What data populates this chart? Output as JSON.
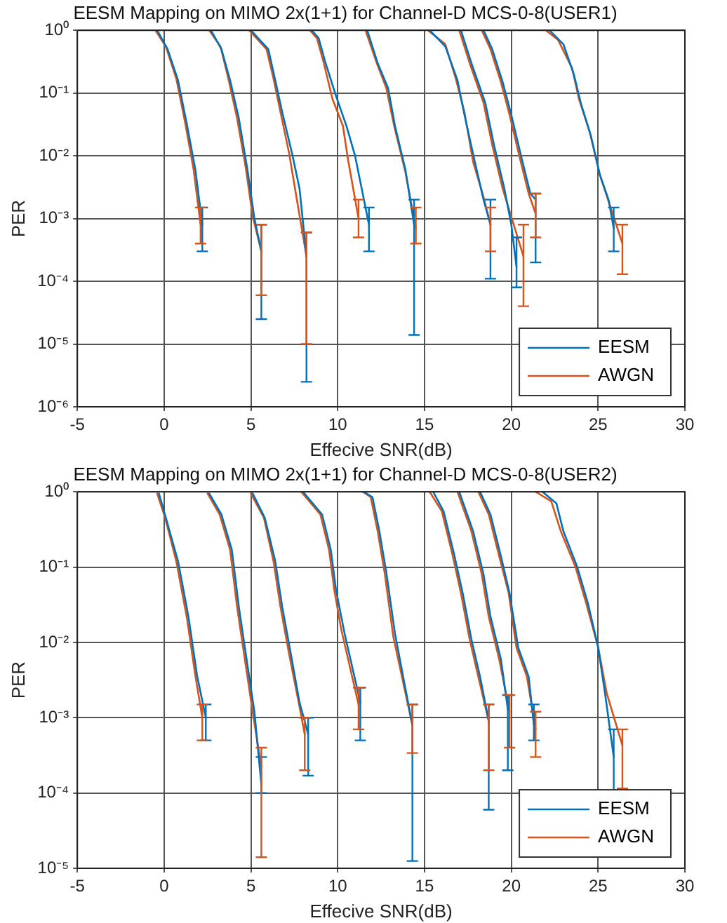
{
  "chart_data": [
    {
      "type": "line",
      "title": "EESM Mapping on MIMO 2x(1+1) for Channel-D MCS-0-8(USER1)",
      "xlabel": "Effecive SNR(dB)",
      "ylabel": "PER",
      "log": "y",
      "grid": true,
      "legend": "bottom right",
      "marker": "none",
      "line_style": "solid",
      "xlim": [
        -5,
        30
      ],
      "xticks": [
        -5,
        0,
        5,
        10,
        15,
        20,
        25,
        30
      ],
      "ylim": [
        1e-06,
        1
      ],
      "yticks": [
        {
          "value": 1e-06,
          "label": "10⁻⁶"
        },
        {
          "value": 1e-05,
          "label": "10⁻⁵"
        },
        {
          "value": 0.0001,
          "label": "10⁻⁴"
        },
        {
          "value": 0.001,
          "label": "10⁻³"
        },
        {
          "value": 0.01,
          "label": "10⁻²"
        },
        {
          "value": 0.1,
          "label": "10⁻¹"
        },
        {
          "value": 1,
          "label": "10⁰"
        }
      ],
      "series": [
        {
          "name": "EESM",
          "color": "#0072bd",
          "x": [
            -0.4,
            0.2,
            0.8,
            1.3,
            1.8,
            2.2,
            null,
            2.7,
            3.3,
            3.8,
            4.3,
            4.8,
            5.2,
            5.6,
            null,
            5.0,
            6.0,
            6.4,
            6.8,
            7.4,
            7.8,
            8.2,
            null,
            8.5,
            8.9,
            9.3,
            9.9,
            10.5,
            11.0,
            11.8,
            null,
            11.7,
            12.3,
            12.9,
            13.3,
            13.9,
            14.4,
            null,
            15.3,
            16.2,
            16.9,
            17.3,
            17.9,
            18.4,
            18.8,
            null,
            17.1,
            17.7,
            18.5,
            19.0,
            19.6,
            20.0,
            20.3,
            null,
            18.4,
            18.9,
            19.5,
            20.0,
            20.6,
            21.1,
            21.4,
            null,
            22.2,
            23.0,
            23.6,
            24.0,
            24.6,
            25.1,
            25.6,
            25.9
          ],
          "values": [
            1,
            0.5,
            0.16,
            0.033,
            0.006,
            0.0008,
            null,
            1,
            0.5,
            0.16,
            0.04,
            0.006,
            0.001,
            0.0003,
            null,
            1,
            0.5,
            0.16,
            0.05,
            0.01,
            0.003,
            0.00025,
            null,
            1,
            0.75,
            0.3,
            0.09,
            0.03,
            0.01,
            0.0008,
            null,
            1,
            0.3,
            0.12,
            0.03,
            0.006,
            0.0008,
            null,
            1,
            0.55,
            0.16,
            0.045,
            0.008,
            0.002,
            0.0008,
            null,
            1,
            0.3,
            0.07,
            0.015,
            0.003,
            0.0008,
            0.00017,
            null,
            1,
            0.5,
            0.15,
            0.045,
            0.009,
            0.0025,
            0.002,
            null,
            1,
            0.6,
            0.2,
            0.07,
            0.02,
            0.005,
            0.002,
            0.0007
          ],
          "errors": [
            null,
            null,
            null,
            null,
            null,
            [
              0.0003,
              0.0015
            ],
            null,
            null,
            null,
            null,
            null,
            null,
            null,
            [
              2.5e-05,
              0.0008
            ],
            null,
            null,
            null,
            null,
            null,
            null,
            null,
            [
              2.5e-06,
              0.0006
            ],
            null,
            null,
            null,
            null,
            null,
            null,
            null,
            [
              0.0003,
              0.0015
            ],
            null,
            null,
            null,
            null,
            null,
            null,
            [
              1.4e-05,
              0.002
            ],
            null,
            null,
            null,
            null,
            null,
            null,
            null,
            [
              0.00011,
              0.002
            ],
            null,
            null,
            null,
            null,
            null,
            null,
            null,
            [
              8e-05,
              0.0005
            ],
            null,
            null,
            null,
            null,
            null,
            null,
            null,
            [
              0.0002,
              0.0025
            ],
            null,
            null,
            null,
            null,
            null,
            null,
            null,
            null,
            [
              0.0003,
              0.0015
            ]
          ]
        },
        {
          "name": "AWGN",
          "color": "#d95319",
          "x": [
            -0.5,
            0.1,
            0.7,
            1.2,
            1.7,
            2.1,
            null,
            2.6,
            3.25,
            3.7,
            4.2,
            4.7,
            5.1,
            5.6,
            null,
            4.9,
            5.9,
            6.3,
            6.7,
            7.2,
            7.5,
            8.2,
            null,
            8.4,
            8.8,
            9.2,
            9.7,
            10.3,
            10.6,
            11.2,
            null,
            11.6,
            12.25,
            12.8,
            13.25,
            13.9,
            14.5,
            null,
            15.2,
            16.2,
            16.8,
            17.3,
            17.8,
            18.4,
            18.8,
            null,
            17.0,
            17.6,
            18.4,
            18.9,
            19.5,
            20.7,
            null,
            18.3,
            18.8,
            19.4,
            19.9,
            20.5,
            21.0,
            21.4,
            null,
            22.0,
            22.7,
            23.5,
            23.9,
            24.5,
            25.1,
            25.5,
            26.4
          ],
          "values": [
            1,
            0.55,
            0.17,
            0.035,
            0.006,
            0.0008,
            null,
            1,
            0.55,
            0.17,
            0.04,
            0.0065,
            0.0011,
            0.0003,
            null,
            1,
            0.5,
            0.17,
            0.05,
            0.011,
            0.0035,
            0.00025,
            null,
            1,
            0.75,
            0.3,
            0.08,
            0.03,
            0.0085,
            0.001,
            null,
            1,
            0.3,
            0.12,
            0.03,
            0.0055,
            0.0007,
            null,
            1,
            0.6,
            0.17,
            0.05,
            0.008,
            0.0022,
            0.0008,
            null,
            1,
            0.3,
            0.07,
            0.015,
            0.003,
            0.00025,
            null,
            1,
            0.5,
            0.15,
            0.045,
            0.009,
            0.0025,
            0.0012,
            null,
            1,
            0.7,
            0.25,
            0.08,
            0.025,
            0.005,
            0.0023,
            0.0004
          ],
          "errors": [
            null,
            null,
            null,
            null,
            null,
            [
              0.0004,
              0.0015
            ],
            null,
            null,
            null,
            null,
            null,
            null,
            null,
            [
              6e-05,
              0.0008
            ],
            null,
            null,
            null,
            null,
            null,
            null,
            null,
            [
              1e-05,
              0.0006
            ],
            null,
            null,
            null,
            null,
            null,
            null,
            null,
            [
              0.0005,
              0.002
            ],
            null,
            null,
            null,
            null,
            null,
            null,
            [
              0.0004,
              0.0015
            ],
            null,
            null,
            null,
            null,
            null,
            null,
            null,
            [
              0.0003,
              0.0015
            ],
            null,
            null,
            null,
            null,
            null,
            null,
            [
              4e-05,
              0.0008
            ],
            null,
            null,
            null,
            null,
            null,
            null,
            null,
            [
              0.0005,
              0.0025
            ],
            null,
            null,
            null,
            null,
            null,
            null,
            null,
            null,
            [
              0.00013,
              0.0008
            ]
          ]
        }
      ]
    },
    {
      "type": "line",
      "title": "EESM Mapping on MIMO 2x(1+1) for Channel-D MCS-0-8(USER2)",
      "xlabel": "Effecive SNR(dB)",
      "ylabel": "PER",
      "log": "y",
      "grid": true,
      "legend": "bottom right",
      "marker": "none",
      "line_style": "solid",
      "xlim": [
        -5,
        30
      ],
      "xticks": [
        -5,
        0,
        5,
        10,
        15,
        20,
        25,
        30
      ],
      "ylim": [
        1e-05,
        1
      ],
      "yticks": [
        {
          "value": 1e-05,
          "label": "10⁻⁵"
        },
        {
          "value": 0.0001,
          "label": "10⁻⁴"
        },
        {
          "value": 0.001,
          "label": "10⁻³"
        },
        {
          "value": 0.01,
          "label": "10⁻²"
        },
        {
          "value": 0.1,
          "label": "10⁻¹"
        },
        {
          "value": 1,
          "label": "10⁰"
        }
      ],
      "series": [
        {
          "name": "EESM",
          "color": "#0072bd",
          "x": [
            -0.3,
            0.1,
            0.8,
            1.4,
            1.9,
            2.4,
            null,
            2.6,
            3.3,
            3.9,
            4.3,
            4.8,
            5.2,
            5.6,
            null,
            5.1,
            5.8,
            6.4,
            6.8,
            7.3,
            7.8,
            8.3,
            null,
            8.0,
            9.1,
            9.6,
            9.9,
            10.4,
            11.3,
            null,
            11.5,
            12.0,
            12.4,
            12.8,
            13.3,
            14.3,
            null,
            15.5,
            16.1,
            16.7,
            17.2,
            17.7,
            18.2,
            18.7,
            null,
            17.0,
            17.8,
            18.4,
            18.8,
            19.4,
            19.8,
            null,
            18.2,
            18.8,
            19.4,
            19.9,
            20.4,
            21.0,
            21.3,
            null,
            21.8,
            22.6,
            23.0,
            23.8,
            24.4,
            25.0,
            25.4,
            25.9
          ],
          "values": [
            0.95,
            0.45,
            0.12,
            0.022,
            0.0036,
            0.001,
            null,
            0.95,
            0.5,
            0.17,
            0.03,
            0.005,
            0.0012,
            0.00013,
            null,
            0.95,
            0.45,
            0.12,
            0.03,
            0.007,
            0.0016,
            0.0006,
            null,
            1,
            0.5,
            0.17,
            0.05,
            0.013,
            0.0016,
            null,
            1,
            0.85,
            0.3,
            0.085,
            0.013,
            0.0008,
            null,
            1,
            0.55,
            0.15,
            0.045,
            0.011,
            0.0035,
            0.0009,
            null,
            1,
            0.3,
            0.08,
            0.022,
            0.006,
            0.0013,
            null,
            1,
            0.5,
            0.14,
            0.045,
            0.0085,
            0.0035,
            0.0008,
            null,
            1,
            0.7,
            0.3,
            0.1,
            0.034,
            0.0087,
            0.0021,
            0.0003
          ],
          "errors": [
            null,
            null,
            null,
            null,
            null,
            [
              0.0005,
              0.0015
            ],
            null,
            null,
            null,
            null,
            null,
            null,
            null,
            [
              0.0001,
              0.0003
            ],
            null,
            null,
            null,
            null,
            null,
            null,
            null,
            [
              0.00017,
              0.001
            ],
            null,
            null,
            null,
            null,
            null,
            null,
            [
              0.0005,
              0.0025
            ],
            null,
            null,
            null,
            null,
            null,
            null,
            [
              1.25e-05,
              0.0015
            ],
            null,
            null,
            null,
            null,
            null,
            null,
            null,
            [
              6e-05,
              0.0015
            ],
            null,
            null,
            null,
            null,
            null,
            null,
            [
              0.0002,
              0.002
            ],
            null,
            null,
            null,
            null,
            null,
            null,
            null,
            [
              0.0005,
              0.0015
            ],
            null,
            null,
            null,
            null,
            null,
            null,
            null,
            null,
            [
              0.0001,
              0.0007
            ]
          ]
        },
        {
          "name": "AWGN",
          "color": "#d95319",
          "x": [
            -0.4,
            0.06,
            0.7,
            1.3,
            1.8,
            2.2,
            null,
            2.5,
            3.2,
            3.8,
            4.2,
            4.7,
            5.1,
            5.6,
            null,
            5.0,
            5.75,
            6.3,
            6.7,
            7.2,
            7.75,
            8.1,
            null,
            7.9,
            9.0,
            9.5,
            9.8,
            10.2,
            11.2,
            null,
            11.45,
            11.9,
            12.3,
            12.7,
            13.2,
            14.3,
            null,
            15.3,
            16.0,
            16.6,
            17.1,
            17.6,
            18.1,
            18.7,
            null,
            16.9,
            17.7,
            18.3,
            18.7,
            19.3,
            19.9,
            null,
            18.1,
            18.7,
            19.3,
            19.85,
            20.3,
            20.9,
            21.4,
            null,
            21.4,
            22.3,
            22.85,
            23.7,
            24.3,
            25.0,
            25.5,
            26.4
          ],
          "values": [
            0.95,
            0.45,
            0.12,
            0.022,
            0.0036,
            0.001,
            null,
            0.95,
            0.5,
            0.17,
            0.03,
            0.005,
            0.0012,
            0.00022,
            null,
            0.95,
            0.45,
            0.12,
            0.03,
            0.007,
            0.0016,
            0.0006,
            null,
            1,
            0.5,
            0.17,
            0.05,
            0.015,
            0.0015,
            null,
            1,
            0.85,
            0.3,
            0.085,
            0.012,
            0.0008,
            null,
            1,
            0.55,
            0.15,
            0.045,
            0.011,
            0.0035,
            0.0009,
            null,
            1,
            0.3,
            0.08,
            0.022,
            0.006,
            0.0012,
            null,
            1,
            0.5,
            0.14,
            0.045,
            0.0085,
            0.0035,
            0.0007,
            null,
            1,
            0.75,
            0.3,
            0.1,
            0.034,
            0.0087,
            0.0021,
            0.00043
          ],
          "errors": [
            null,
            null,
            null,
            null,
            null,
            [
              0.0005,
              0.0015
            ],
            null,
            null,
            null,
            null,
            null,
            null,
            null,
            [
              1.4e-05,
              0.0004
            ],
            null,
            null,
            null,
            null,
            null,
            null,
            null,
            [
              0.0002,
              0.001
            ],
            null,
            null,
            null,
            null,
            null,
            null,
            [
              0.0007,
              0.0025
            ],
            null,
            null,
            null,
            null,
            null,
            null,
            [
              0.00034,
              0.0015
            ],
            null,
            null,
            null,
            null,
            null,
            null,
            null,
            [
              0.0002,
              0.0015
            ],
            null,
            null,
            null,
            null,
            null,
            null,
            [
              0.0004,
              0.002
            ],
            null,
            null,
            null,
            null,
            null,
            null,
            null,
            [
              0.0003,
              0.0012
            ],
            null,
            null,
            null,
            null,
            null,
            null,
            null,
            null,
            [
              0.000115,
              0.0007
            ]
          ]
        }
      ]
    }
  ]
}
